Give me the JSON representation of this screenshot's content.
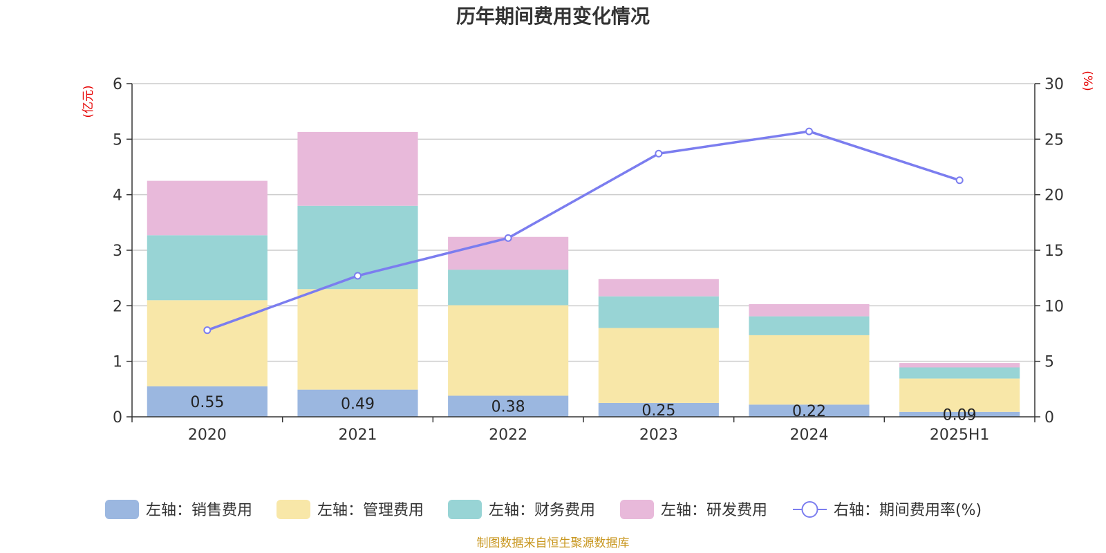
{
  "source_note": "制图数据来自恒生聚源数据库",
  "chart_data": {
    "type": "bar",
    "stacked": true,
    "title": "历年期间费用变化情况",
    "categories": [
      "2020",
      "2021",
      "2022",
      "2023",
      "2024",
      "2025H1"
    ],
    "left_axis": {
      "unit": "(亿元)",
      "ylim": [
        0,
        6
      ],
      "ticks": [
        0,
        1,
        2,
        3,
        4,
        5,
        6
      ]
    },
    "right_axis": {
      "unit": "(%)",
      "ylim": [
        0,
        30
      ],
      "ticks": [
        0,
        5,
        10,
        15,
        20,
        25,
        30
      ]
    },
    "grid": true,
    "legend_position": "bottom",
    "series": [
      {
        "name": "左轴：销售费用",
        "type": "bar",
        "axis": "left",
        "color": "#9bb7e0",
        "values": [
          0.55,
          0.49,
          0.38,
          0.25,
          0.22,
          0.09
        ],
        "labels": [
          "0.55",
          "0.49",
          "0.38",
          "0.25",
          "0.22",
          "0.09"
        ]
      },
      {
        "name": "左轴：管理费用",
        "type": "bar",
        "axis": "left",
        "color": "#f8e7a8",
        "values": [
          1.55,
          1.81,
          1.63,
          1.35,
          1.25,
          0.6
        ]
      },
      {
        "name": "左轴：财务费用",
        "type": "bar",
        "axis": "left",
        "color": "#98d4d5",
        "values": [
          1.17,
          1.5,
          0.64,
          0.57,
          0.34,
          0.2
        ]
      },
      {
        "name": "左轴：研发费用",
        "type": "bar",
        "axis": "left",
        "color": "#e8b9da",
        "values": [
          0.98,
          1.33,
          0.59,
          0.31,
          0.22,
          0.08
        ]
      },
      {
        "name": "右轴：期间费用率(%)",
        "type": "line",
        "axis": "right",
        "color": "#7b7def",
        "values": [
          7.8,
          12.7,
          16.1,
          23.7,
          25.7,
          21.3
        ]
      }
    ]
  }
}
